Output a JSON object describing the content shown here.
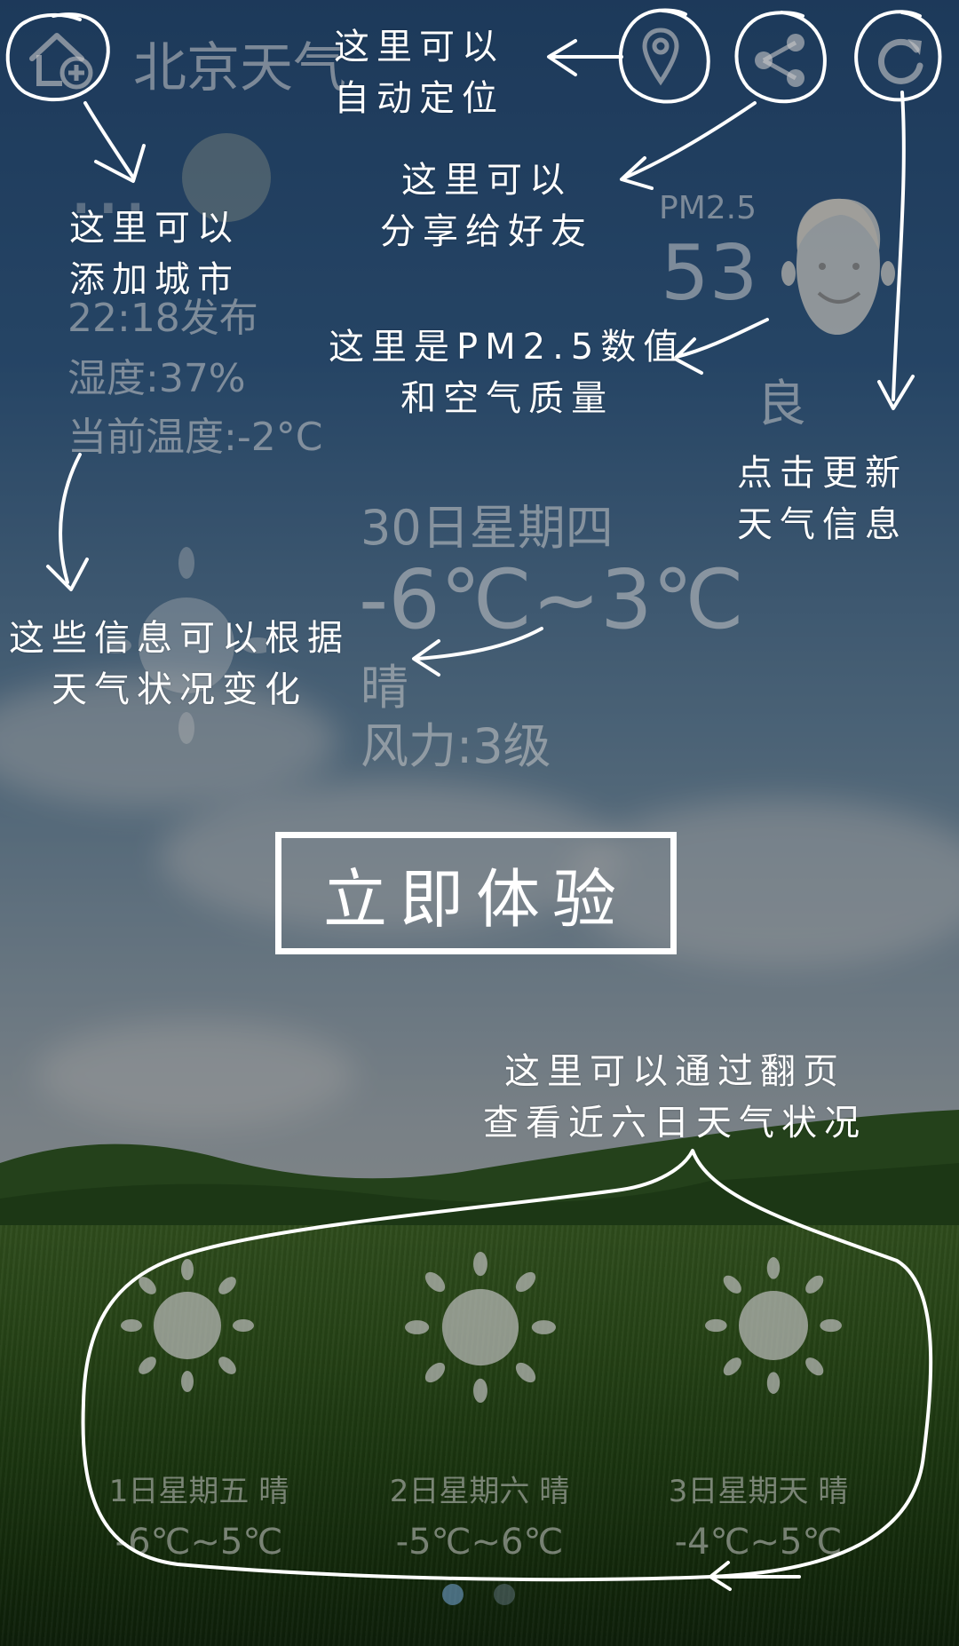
{
  "app": {
    "city_title": "北京天气",
    "publish_time": "22:18发布",
    "humidity": "湿度:37%",
    "current_temp": "当前温度:-2°C"
  },
  "pm25": {
    "label": "PM2.5",
    "value": "53",
    "quality": "良"
  },
  "today": {
    "date": "30日星期四",
    "temp_range": "-6℃~3℃",
    "condition": "晴",
    "wind": "风力:3级"
  },
  "forecast": [
    {
      "date_cond": "1日星期五 晴",
      "temp": "-6℃~5℃"
    },
    {
      "date_cond": "2日星期六 晴",
      "temp": "-5℃~6℃"
    },
    {
      "date_cond": "3日星期天 晴",
      "temp": "-4℃~5℃"
    }
  ],
  "pager": {
    "pages": 2,
    "current": 1
  },
  "annotations": {
    "add_city": "这里可以\n添加城市",
    "locate": "这里可以\n自动定位",
    "share": "这里可以\n分享给好友",
    "pm": "这里是PM2.5数值\n和空气质量",
    "refresh": "点击更新\n天气信息",
    "info_change": "这些信息可以根据\n天气状况变化",
    "paging": "这里可以通过翻页\n查看近六日天气状况"
  },
  "cta_label": "立即体验",
  "icons": {
    "add_city": "home-plus-icon",
    "locate": "location-pin-icon",
    "share": "share-icon",
    "refresh": "refresh-icon",
    "avatar": "face-icon",
    "weather": "sun-icon"
  },
  "colors": {
    "annotation": "#ffffff",
    "faded_ui": "#c8c8c8"
  }
}
